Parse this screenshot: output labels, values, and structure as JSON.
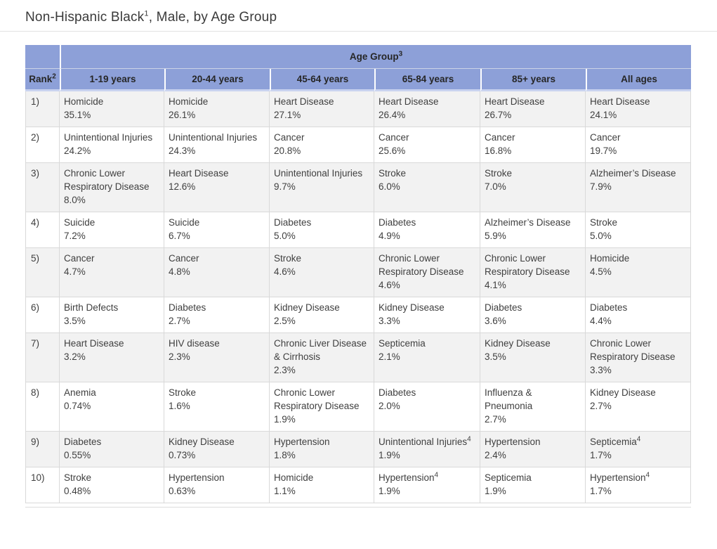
{
  "title": {
    "text": "Non-Hispanic Black",
    "sup": "1",
    "suffix": ", Male, by Age Group"
  },
  "table": {
    "span_header": {
      "label": "Age Group",
      "sup": "3"
    },
    "rank_header": {
      "label": "Rank",
      "sup": "2"
    },
    "age_columns": [
      "1-19 years",
      "20-44 years",
      "45-64 years",
      "65-84 years",
      "85+ years",
      "All ages"
    ],
    "rows": [
      {
        "rank": "1)",
        "cells": [
          {
            "cause": "Homicide",
            "pct": "35.1%"
          },
          {
            "cause": "Homicide",
            "pct": "26.1%"
          },
          {
            "cause": "Heart Disease",
            "pct": "27.1%"
          },
          {
            "cause": "Heart Disease",
            "pct": "26.4%"
          },
          {
            "cause": "Heart Disease",
            "pct": "26.7%"
          },
          {
            "cause": "Heart Disease",
            "pct": "24.1%"
          }
        ]
      },
      {
        "rank": "2)",
        "cells": [
          {
            "cause": "Unintentional Injuries",
            "pct": "24.2%"
          },
          {
            "cause": "Unintentional Injuries",
            "pct": "24.3%"
          },
          {
            "cause": "Cancer",
            "pct": "20.8%"
          },
          {
            "cause": "Cancer",
            "pct": "25.6%"
          },
          {
            "cause": "Cancer",
            "pct": "16.8%"
          },
          {
            "cause": "Cancer",
            "pct": "19.7%"
          }
        ]
      },
      {
        "rank": "3)",
        "cells": [
          {
            "cause": "Chronic Lower Respiratory Disease",
            "pct": "8.0%"
          },
          {
            "cause": "Heart Disease",
            "pct": "12.6%"
          },
          {
            "cause": "Unintentional Injuries",
            "pct": "9.7%"
          },
          {
            "cause": "Stroke",
            "pct": "6.0%"
          },
          {
            "cause": "Stroke",
            "pct": "7.0%"
          },
          {
            "cause": "Alzheimer’s Disease",
            "pct": "7.9%"
          }
        ]
      },
      {
        "rank": "4)",
        "cells": [
          {
            "cause": "Suicide",
            "pct": "7.2%"
          },
          {
            "cause": "Suicide",
            "pct": "6.7%"
          },
          {
            "cause": "Diabetes",
            "pct": "5.0%"
          },
          {
            "cause": "Diabetes",
            "pct": "4.9%"
          },
          {
            "cause": "Alzheimer’s Disease",
            "pct": "5.9%"
          },
          {
            "cause": "Stroke",
            "pct": "5.0%"
          }
        ]
      },
      {
        "rank": "5)",
        "cells": [
          {
            "cause": "Cancer",
            "pct": "4.7%"
          },
          {
            "cause": "Cancer",
            "pct": "4.8%"
          },
          {
            "cause": "Stroke",
            "pct": "4.6%"
          },
          {
            "cause": "Chronic Lower Respiratory Disease",
            "pct": "4.6%"
          },
          {
            "cause": "Chronic Lower Respiratory Disease",
            "pct": "4.1%"
          },
          {
            "cause": "Homicide",
            "pct": "4.5%"
          }
        ]
      },
      {
        "rank": "6)",
        "cells": [
          {
            "cause": "Birth Defects",
            "pct": "3.5%"
          },
          {
            "cause": "Diabetes",
            "pct": "2.7%"
          },
          {
            "cause": "Kidney Disease",
            "pct": "2.5%"
          },
          {
            "cause": "Kidney Disease",
            "pct": "3.3%"
          },
          {
            "cause": "Diabetes",
            "pct": "3.6%"
          },
          {
            "cause": "Diabetes",
            "pct": "4.4%"
          }
        ]
      },
      {
        "rank": "7)",
        "cells": [
          {
            "cause": "Heart Disease",
            "pct": "3.2%"
          },
          {
            "cause": "HIV disease",
            "pct": "2.3%"
          },
          {
            "cause": "Chronic Liver Disease & Cirrhosis",
            "pct": "2.3%"
          },
          {
            "cause": "Septicemia",
            "pct": "2.1%"
          },
          {
            "cause": "Kidney Disease",
            "pct": "3.5%"
          },
          {
            "cause": "Chronic Lower Respiratory Disease",
            "pct": "3.3%"
          }
        ]
      },
      {
        "rank": "8)",
        "cells": [
          {
            "cause": "Anemia",
            "pct": "0.74%"
          },
          {
            "cause": "Stroke",
            "pct": "1.6%"
          },
          {
            "cause": "Chronic Lower Respiratory Disease",
            "pct": "1.9%"
          },
          {
            "cause": "Diabetes",
            "pct": "2.0%"
          },
          {
            "cause": "Influenza & Pneumonia",
            "pct": "2.7%"
          },
          {
            "cause": "Kidney Disease",
            "pct": "2.7%"
          }
        ]
      },
      {
        "rank": "9)",
        "cells": [
          {
            "cause": "Diabetes",
            "pct": "0.55%"
          },
          {
            "cause": "Kidney Disease",
            "pct": "0.73%"
          },
          {
            "cause": "Hypertension",
            "pct": "1.8%"
          },
          {
            "cause": "Unintentional Injuries",
            "sup": "4",
            "pct": "1.9%"
          },
          {
            "cause": "Hypertension",
            "pct": "2.4%"
          },
          {
            "cause": "Septicemia",
            "sup": "4",
            "pct": "1.7%"
          }
        ]
      },
      {
        "rank": "10)",
        "cells": [
          {
            "cause": "Stroke",
            "pct": "0.48%"
          },
          {
            "cause": "Hypertension",
            "pct": "0.63%"
          },
          {
            "cause": "Homicide",
            "pct": "1.1%"
          },
          {
            "cause": "Hypertension",
            "sup": "4",
            "pct": "1.9%"
          },
          {
            "cause": "Septicemia",
            "pct": "1.9%"
          },
          {
            "cause": "Hypertension",
            "sup": "4",
            "pct": "1.7%"
          }
        ]
      }
    ]
  },
  "colors": {
    "header_bg": "#8da0d8",
    "header_text": "#262626",
    "row_alt_bg": "#f2f2f2",
    "row_bg": "#ffffff",
    "cell_border": "#d9d9d9",
    "header_separator": "#c9d3ef",
    "body_text": "#3f3f3f"
  }
}
